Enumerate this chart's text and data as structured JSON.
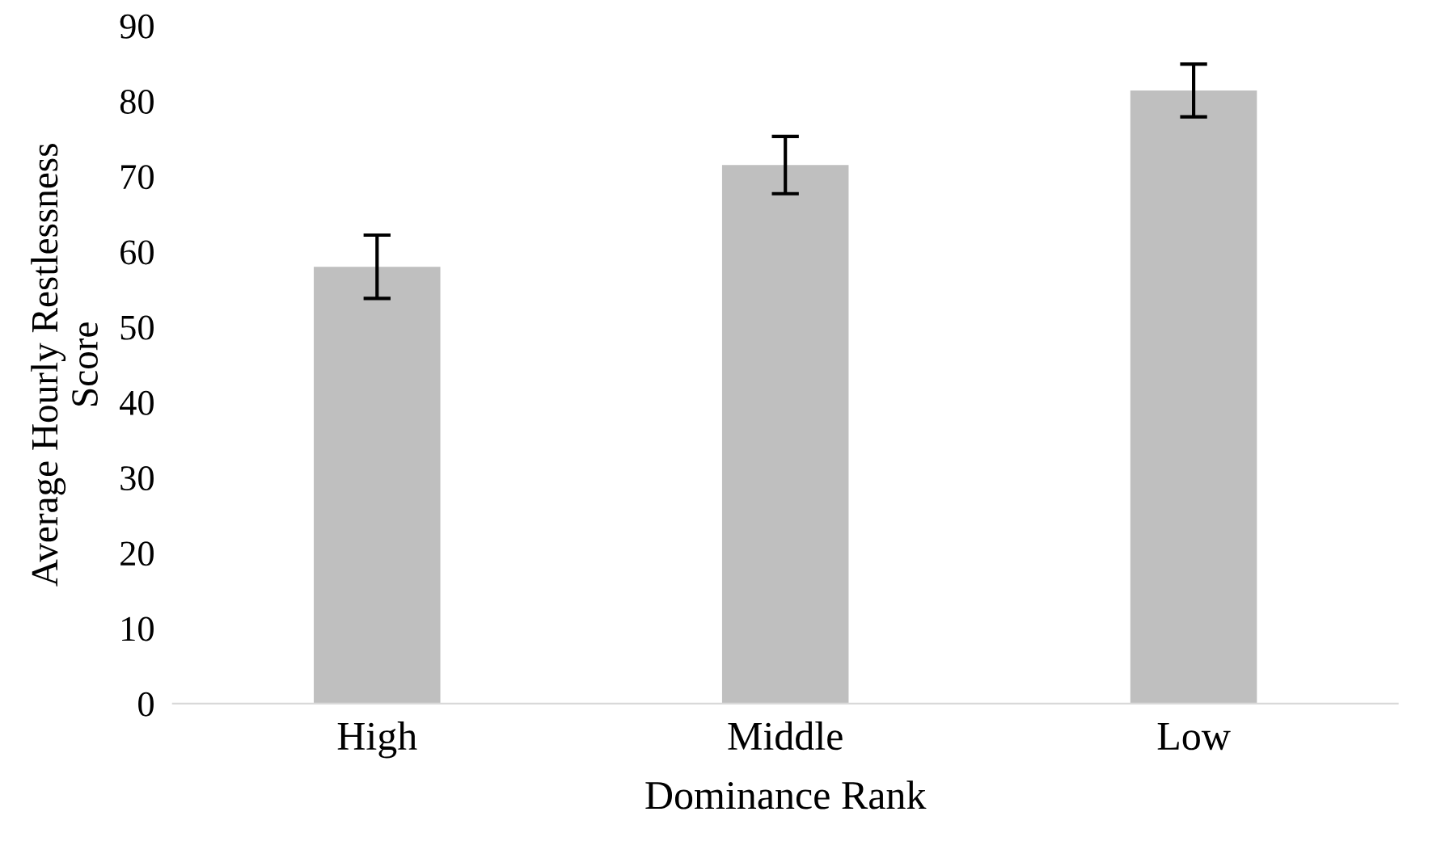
{
  "chart_data": {
    "type": "bar",
    "xlabel": "Dominance Rank",
    "ylabel": "Average Hourly Restlessness\nScore",
    "categories": [
      "High",
      "Middle",
      "Low"
    ],
    "values": [
      58,
      71.5,
      81.4
    ],
    "errors": [
      4.2,
      3.8,
      3.5
    ],
    "color": "#bfbfbf",
    "ylim": [
      0,
      90
    ],
    "yticks": [
      0,
      10,
      20,
      30,
      40,
      50,
      60,
      70,
      80,
      90
    ],
    "grid": false,
    "legend": false
  }
}
